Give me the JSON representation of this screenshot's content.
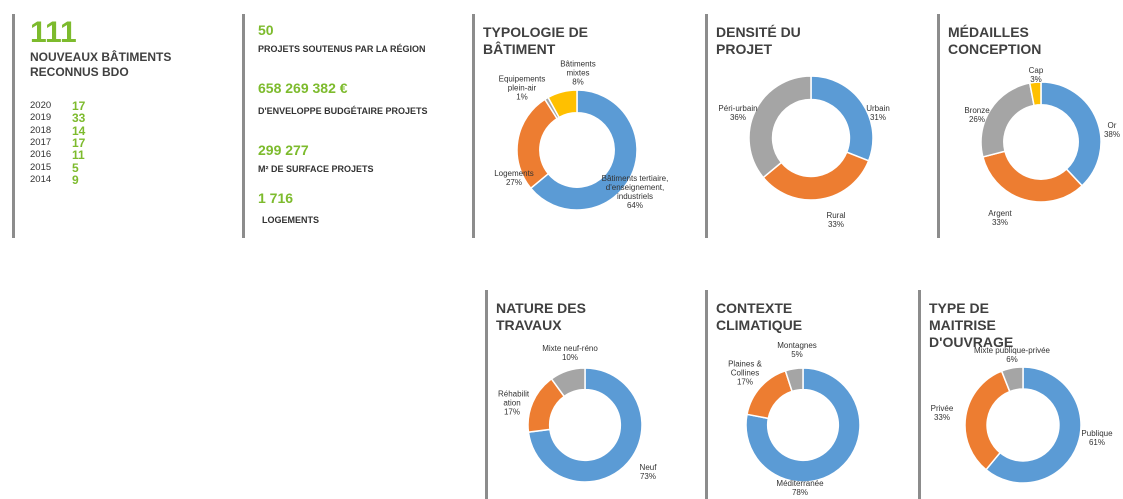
{
  "summary": {
    "count": 111,
    "label": "NOUVEAUX BÂTIMENTS RECONNUS BDO",
    "years": [
      {
        "year": "2020",
        "count": 17
      },
      {
        "year": "2019",
        "count": 33
      },
      {
        "year": "2018",
        "count": 14
      },
      {
        "year": "2017",
        "count": 17
      },
      {
        "year": "2016",
        "count": 11
      },
      {
        "year": "2015",
        "count": 5
      },
      {
        "year": "2014",
        "count": 9
      }
    ]
  },
  "stats": [
    {
      "value": "50",
      "label": "PROJETS SOUTENUS PAR LA RÉGION"
    },
    {
      "value": "658 269 382 €",
      "label": "D'ENVELOPPE BUDGÉTAIRE PROJETS"
    },
    {
      "value": "299 277",
      "label": "M² DE SURFACE PROJETS"
    },
    {
      "value": "1 716",
      "label": "LOGEMENTS"
    }
  ],
  "chart_data": [
    {
      "type": "pie",
      "title": "TYPOLOGIE DE BÂTIMENT",
      "categories": [
        "Bâtiments tertiaire, d'enseignement, industriels",
        "Logements",
        "Equipements plein-air",
        "Bâtiments mixtes"
      ],
      "values": [
        64,
        27,
        1,
        8
      ],
      "value_labels": [
        "64%",
        "27%",
        "1%",
        "8%"
      ],
      "colors": [
        "#5b9bd5",
        "#ed7d31",
        "#a5a5a5",
        "#ffc000"
      ]
    },
    {
      "type": "pie",
      "title": "DENSITÉ DU PROJET",
      "categories": [
        "Urbain",
        "Rural",
        "Péri-urbain"
      ],
      "values": [
        31,
        33,
        36
      ],
      "value_labels": [
        "31%",
        "33%",
        "36%"
      ],
      "colors": [
        "#5b9bd5",
        "#ed7d31",
        "#a5a5a5"
      ]
    },
    {
      "type": "pie",
      "title": "MÉDAILLES CONCEPTION",
      "categories": [
        "Or",
        "Argent",
        "Bronze",
        "Cap"
      ],
      "values": [
        38,
        33,
        26,
        3
      ],
      "value_labels": [
        "38%",
        "33%",
        "26%",
        "3%"
      ],
      "colors": [
        "#5b9bd5",
        "#ed7d31",
        "#a5a5a5",
        "#ffc000"
      ]
    },
    {
      "type": "pie",
      "title": "NATURE DES TRAVAUX",
      "categories": [
        "Neuf",
        "Réhabilit ation",
        "Mixte neuf-réno"
      ],
      "values": [
        73,
        17,
        10
      ],
      "value_labels": [
        "73%",
        "17%",
        "10%"
      ],
      "colors": [
        "#5b9bd5",
        "#ed7d31",
        "#a5a5a5"
      ]
    },
    {
      "type": "pie",
      "title": "CONTEXTE CLIMATIQUE",
      "categories": [
        "Méditerranée",
        "Plaines & Collines",
        "Montagnes"
      ],
      "values": [
        78,
        17,
        5
      ],
      "value_labels": [
        "78%",
        "17%",
        "5%"
      ],
      "colors": [
        "#5b9bd5",
        "#ed7d31",
        "#a5a5a5"
      ]
    },
    {
      "type": "pie",
      "title": "TYPE DE MAITRISE D'OUVRAGE",
      "categories": [
        "Publique",
        "Privée",
        "Mixte publique-privée"
      ],
      "values": [
        61,
        33,
        6
      ],
      "value_labels": [
        "61%",
        "33%",
        "6%"
      ],
      "colors": [
        "#5b9bd5",
        "#ed7d31",
        "#a5a5a5"
      ]
    }
  ]
}
